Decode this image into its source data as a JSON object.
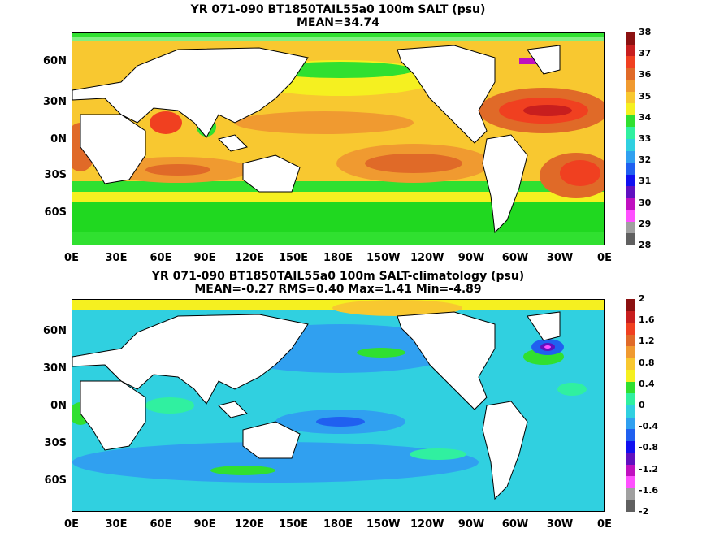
{
  "panels": [
    {
      "title_line1": "YR 071-090 BT1850TAIL55a0 100m SALT (psu)",
      "title_line2": "MEAN=34.74",
      "colorbar_labels": [
        "38",
        "37",
        "36",
        "35",
        "34",
        "33",
        "32",
        "31",
        "30",
        "29",
        "28"
      ],
      "colorbar_colors": [
        "#8b1010",
        "#c81e1e",
        "#f04020",
        "#e06a28",
        "#f09a30",
        "#f8c830",
        "#f5f020",
        "#30e030",
        "#30f0a0",
        "#30d0e0",
        "#30a0f0",
        "#2060f0",
        "#1010f0",
        "#6010c0",
        "#c010c0",
        "#ff50ff",
        "#a0a0a0",
        "#606060"
      ]
    },
    {
      "title_line1": "YR 071-090 BT1850TAIL55a0 100m SALT-climatology (psu)",
      "title_line2": "MEAN=-0.27   RMS=0.40   Max=1.41   Min=-4.89",
      "colorbar_labels": [
        "2",
        "1.6",
        "1.2",
        "0.8",
        "0.4",
        "0",
        "-0.4",
        "-0.8",
        "-1.2",
        "-1.6",
        "-2"
      ],
      "colorbar_colors": [
        "#8b1010",
        "#c81e1e",
        "#f04020",
        "#e06a28",
        "#f09a30",
        "#f8c830",
        "#f5f020",
        "#30e030",
        "#30f0a0",
        "#30d0e0",
        "#30a0f0",
        "#2060f0",
        "#1010f0",
        "#6010c0",
        "#c010c0",
        "#ff50ff",
        "#a0a0a0",
        "#606060"
      ]
    }
  ],
  "lat_labels": [
    "60N",
    "30N",
    "0N",
    "30S",
    "60S"
  ],
  "lon_labels": [
    "0E",
    "30E",
    "60E",
    "90E",
    "120E",
    "150E",
    "180E",
    "150W",
    "120W",
    "90W",
    "60W",
    "30W",
    "0E"
  ]
}
